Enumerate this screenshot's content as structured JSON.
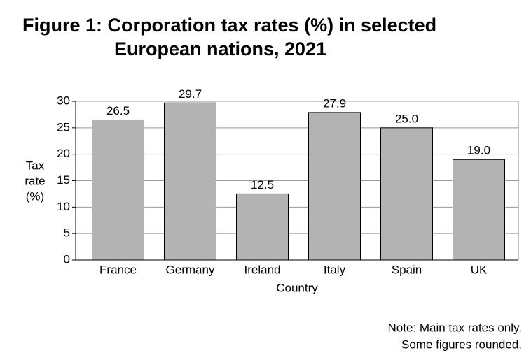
{
  "chart_data": {
    "type": "bar",
    "title": [
      "Figure 1: Corporation tax rates (%) in selected",
      "European nations, 2021"
    ],
    "categories": [
      "France",
      "Germany",
      "Ireland",
      "Italy",
      "Spain",
      "UK"
    ],
    "values": [
      26.5,
      29.7,
      12.5,
      27.9,
      25,
      19
    ],
    "value_labels": [
      "26.5",
      "29.7",
      "12.5",
      "27.9",
      "25.0",
      "19.0"
    ],
    "color": "#b3b3b3",
    "ylim": [
      0,
      30
    ],
    "yticks": [
      0,
      5,
      10,
      15,
      20,
      25,
      30
    ],
    "grid": true,
    "xlabel": "Country",
    "ylabel": [
      "Tax",
      "rate",
      "(%)"
    ],
    "note": [
      "Note: Main tax rates only.",
      "Some figures rounded."
    ]
  }
}
